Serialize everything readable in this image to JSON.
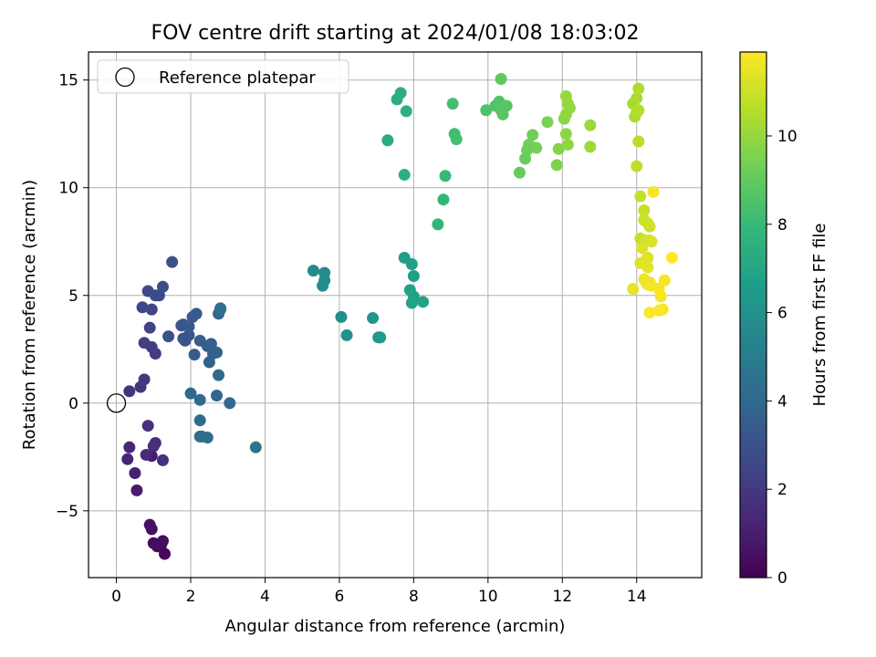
{
  "chart_data": {
    "type": "scatter",
    "title": "FOV centre drift starting at 2024/01/08 18:03:02",
    "xlabel": "Angular distance from reference (arcmin)",
    "ylabel": "Rotation from reference (arcmin)",
    "xlim": [
      -0.75,
      15.75
    ],
    "ylim": [
      -8.1,
      16.3
    ],
    "xticks": [
      "0",
      "2",
      "4",
      "6",
      "8",
      "10",
      "12",
      "14"
    ],
    "xtick_values": [
      0,
      2,
      4,
      6,
      8,
      10,
      12,
      14
    ],
    "yticks": [
      "−5",
      "0",
      "5",
      "10",
      "15"
    ],
    "ytick_values": [
      -5,
      0,
      5,
      10,
      15
    ],
    "grid": true,
    "legend": {
      "placement": "top-left",
      "entries": [
        "Reference platepar"
      ]
    },
    "reference_point": {
      "x": 0,
      "y": 0
    },
    "colorbar": {
      "label": "Hours from first FF file",
      "range": [
        0,
        11.9
      ],
      "ticks": [
        "0",
        "2",
        "4",
        "6",
        "8",
        "10"
      ],
      "tick_values": [
        0,
        2,
        4,
        6,
        8,
        10
      ],
      "colormap": "viridis"
    },
    "series": [
      {
        "x": [
          1.3,
          1.2,
          1.1,
          1.0,
          0.95,
          1.25,
          0.9,
          0.95,
          0.55,
          0.5,
          0.3,
          0.35,
          0.8,
          1.05,
          0.85,
          1.0,
          1.25,
          0.35,
          0.65,
          0.75,
          1.05,
          0.95,
          0.75,
          0.9,
          0.95,
          0.7,
          0.85,
          1.15,
          1.05,
          1.25,
          1.5,
          1.4,
          1.75,
          1.85,
          1.95,
          1.8,
          1.8,
          1.95,
          2.1,
          2.05,
          2.15,
          2.25,
          2.45,
          2.55,
          2.5,
          2.6,
          2.7,
          2.75,
          2.8,
          2.7,
          2.75,
          2.0,
          2.25,
          3.05,
          2.25,
          2.25,
          2.45,
          2.3,
          2.8,
          3.75
        ],
        "y": [
          -7.0,
          -6.6,
          -6.65,
          -6.5,
          -5.85,
          -6.4,
          -5.65,
          -2.45,
          -4.05,
          -3.25,
          -2.6,
          -2.05,
          -2.4,
          -1.85,
          -1.05,
          -2.0,
          -2.65,
          0.55,
          0.75,
          1.1,
          2.3,
          2.6,
          2.8,
          3.5,
          4.35,
          4.45,
          5.2,
          5.0,
          5.0,
          5.4,
          6.55,
          3.1,
          3.6,
          2.9,
          3.15,
          3.0,
          3.65,
          3.55,
          2.25,
          4.0,
          4.15,
          2.9,
          2.65,
          2.75,
          1.9,
          2.3,
          2.35,
          4.15,
          4.4,
          0.35,
          1.3,
          0.45,
          0.15,
          0.0,
          -0.8,
          -1.55,
          -1.6,
          -1.55,
          4.35,
          -2.05
        ],
        "hours": [
          0.2,
          0.3,
          0.35,
          0.4,
          0.5,
          0.45,
          0.55,
          0.9,
          1.0,
          1.1,
          1.2,
          1.25,
          1.5,
          1.55,
          1.6,
          1.65,
          1.7,
          1.8,
          1.9,
          2.0,
          2.1,
          2.2,
          2.3,
          2.4,
          2.5,
          2.6,
          2.65,
          2.7,
          2.75,
          2.8,
          2.9,
          3.0,
          3.05,
          3.1,
          3.15,
          3.2,
          3.25,
          3.3,
          3.35,
          3.4,
          3.45,
          3.5,
          3.55,
          3.6,
          3.65,
          3.7,
          3.75,
          3.8,
          3.85,
          3.9,
          3.95,
          4.0,
          4.05,
          4.1,
          4.15,
          4.2,
          4.25,
          4.3,
          4.35,
          4.6
        ]
      },
      {
        "x": [
          5.3,
          5.6,
          5.6,
          5.55,
          6.05,
          6.2,
          6.9,
          7.05,
          7.1,
          7.75,
          7.95,
          8.0,
          7.9,
          7.95,
          8.0,
          8.25,
          7.3,
          7.55,
          7.65,
          7.8,
          7.75,
          8.65,
          8.8,
          8.85,
          9.1,
          9.15,
          9.05
        ],
        "y": [
          6.15,
          6.05,
          5.7,
          5.45,
          4.0,
          3.15,
          3.95,
          3.05,
          3.05,
          6.75,
          6.45,
          5.9,
          5.25,
          4.65,
          4.95,
          4.7,
          12.2,
          14.1,
          14.4,
          13.55,
          10.6,
          8.3,
          9.45,
          10.55,
          12.5,
          12.25,
          13.9
        ],
        "hours": [
          5.6,
          5.65,
          5.7,
          5.75,
          5.9,
          6.0,
          6.3,
          6.35,
          6.4,
          6.6,
          6.65,
          6.7,
          6.75,
          6.8,
          6.85,
          6.9,
          7.3,
          7.4,
          7.45,
          7.5,
          7.55,
          7.8,
          7.9,
          8.0,
          8.2,
          8.25,
          8.3
        ]
      },
      {
        "x": [
          9.95,
          10.2,
          10.3,
          10.35,
          10.5,
          10.4,
          10.35,
          10.85,
          11.0,
          11.05,
          11.1,
          11.2,
          11.3,
          11.6,
          11.85,
          11.9,
          12.05,
          12.1,
          12.15,
          12.2,
          12.1,
          12.15,
          12.1,
          12.75,
          12.75
        ],
        "y": [
          13.6,
          13.8,
          14.0,
          13.6,
          13.8,
          13.4,
          15.05,
          10.7,
          11.35,
          11.75,
          12.0,
          12.45,
          11.85,
          13.05,
          11.05,
          11.8,
          13.2,
          12.5,
          12.0,
          13.7,
          13.4,
          13.9,
          14.25,
          12.9,
          11.9
        ],
        "hours": [
          8.5,
          8.6,
          8.65,
          8.7,
          8.75,
          8.8,
          8.9,
          9.1,
          9.15,
          9.2,
          9.25,
          9.3,
          9.35,
          9.5,
          9.6,
          9.7,
          9.75,
          9.8,
          9.85,
          9.9,
          9.95,
          10.0,
          10.05,
          10.1,
          10.15
        ]
      },
      {
        "x": [
          13.9,
          14.0,
          13.95,
          14.05,
          14.0,
          14.05,
          14.05,
          14.0,
          14.1,
          14.1,
          14.2,
          14.2,
          14.3,
          14.35,
          14.25,
          14.35,
          14.4,
          14.3,
          14.1,
          14.15,
          14.25,
          14.3,
          14.35,
          14.2,
          14.25,
          14.3,
          14.4,
          14.45,
          14.6,
          14.65,
          14.7,
          14.75,
          14.35,
          14.6,
          14.95,
          13.9
        ],
        "y": [
          13.9,
          14.15,
          13.3,
          14.6,
          13.5,
          13.6,
          12.15,
          11.0,
          9.6,
          7.65,
          8.95,
          8.5,
          8.35,
          8.2,
          7.55,
          7.55,
          7.5,
          6.75,
          6.5,
          7.2,
          6.65,
          6.3,
          5.6,
          5.75,
          5.6,
          5.5,
          5.45,
          9.8,
          5.3,
          4.95,
          4.35,
          5.7,
          4.2,
          4.3,
          6.75,
          5.3
        ],
        "hours": [
          10.3,
          10.35,
          10.4,
          10.45,
          10.5,
          10.55,
          10.6,
          10.7,
          10.8,
          10.85,
          10.9,
          10.95,
          11.0,
          11.05,
          11.1,
          11.15,
          11.2,
          11.25,
          11.3,
          11.35,
          11.4,
          11.45,
          11.5,
          11.55,
          11.6,
          11.65,
          11.7,
          11.75,
          11.75,
          11.8,
          11.8,
          11.8,
          11.85,
          11.85,
          11.9,
          11.5
        ]
      }
    ]
  }
}
